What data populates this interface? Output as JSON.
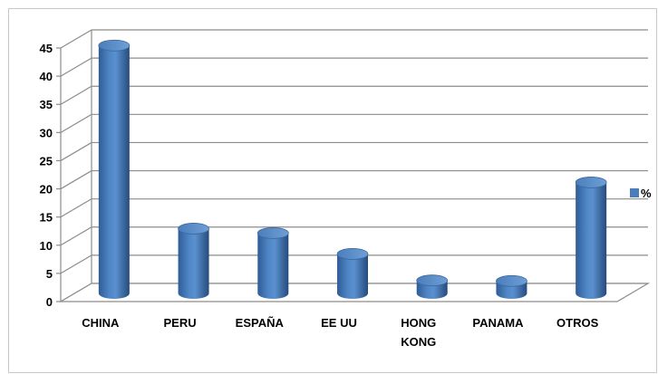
{
  "chart_data": {
    "type": "bar",
    "style": "3d-cylinder",
    "categories": [
      "CHINA",
      "PERU",
      "ESPAÑA",
      "EE UU",
      "HONG KONG",
      "PANAMA",
      "OTROS"
    ],
    "category_lines": [
      [
        "CHINA"
      ],
      [
        "PERU"
      ],
      [
        "ESPAÑA"
      ],
      [
        "EE UU"
      ],
      [
        "HONG",
        "KONG"
      ],
      [
        "PANAMA"
      ],
      [
        "OTROS"
      ]
    ],
    "series": [
      {
        "name": "%",
        "values": [
          44,
          11.5,
          10.7,
          7,
          2.3,
          2.2,
          19.7
        ],
        "color": "#4a7ebb"
      }
    ],
    "yticks": [
      "0",
      "5",
      "10",
      "15",
      "20",
      "25",
      "30",
      "35",
      "40",
      "45"
    ],
    "ylim": [
      0,
      45
    ],
    "grid": true,
    "legend": "right",
    "title": "",
    "xlabel": "",
    "ylabel": ""
  }
}
